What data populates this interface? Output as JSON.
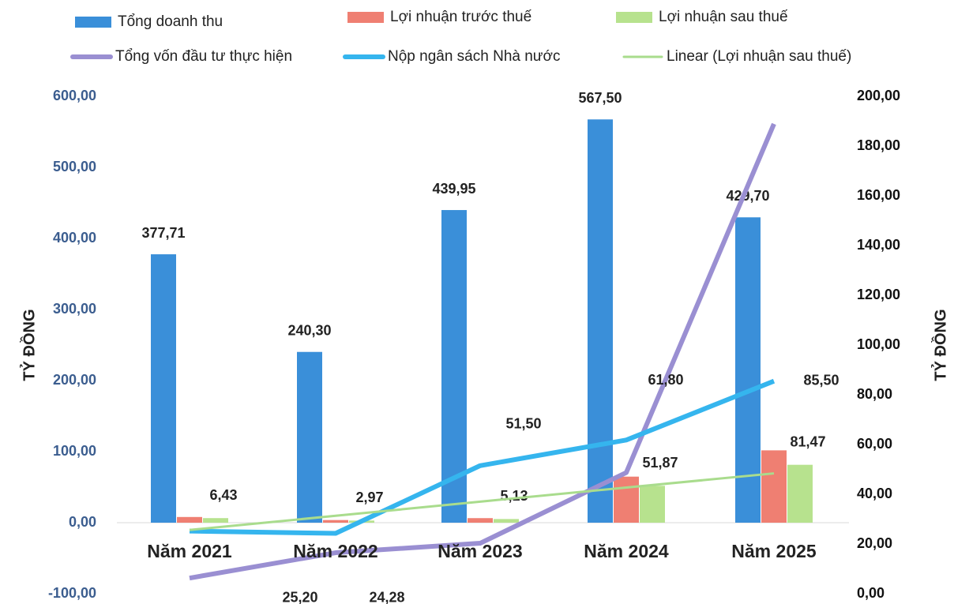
{
  "chart_data": {
    "type": "bar",
    "categories": [
      "Năm 2021",
      "Năm 2022",
      "Năm 2023",
      "Năm 2024",
      "Năm 2025"
    ],
    "ylabel": "TỶ ĐỒNG",
    "y2label": "TỶ ĐỒNG",
    "ylim": [
      -100,
      600
    ],
    "yticks": [
      {
        "value": -100,
        "label": "-100,00"
      },
      {
        "value": 0,
        "label": "0,00"
      },
      {
        "value": 100,
        "label": "100,00"
      },
      {
        "value": 200,
        "label": "200,00"
      },
      {
        "value": 300,
        "label": "300,00"
      },
      {
        "value": 400,
        "label": "400,00"
      },
      {
        "value": 500,
        "label": "500,00"
      },
      {
        "value": 600,
        "label": "600,00"
      }
    ],
    "y2lim": [
      0,
      200
    ],
    "y2ticks": [
      {
        "value": 0,
        "label": "0,00"
      },
      {
        "value": 20,
        "label": "20,00"
      },
      {
        "value": 40,
        "label": "40,00"
      },
      {
        "value": 60,
        "label": "60,00"
      },
      {
        "value": 80,
        "label": "80,00"
      },
      {
        "value": 100,
        "label": "100,00"
      },
      {
        "value": 120,
        "label": "120,00"
      },
      {
        "value": 140,
        "label": "140,00"
      },
      {
        "value": 160,
        "label": "160,00"
      },
      {
        "value": 180,
        "label": "180,00"
      },
      {
        "value": 200,
        "label": "200,00"
      }
    ],
    "series": [
      {
        "name": "Tổng doanh thu",
        "type": "bar",
        "color": "#3a8fd9",
        "values": [
          377.71,
          240.3,
          439.95,
          567.5,
          429.7
        ],
        "value_labels": [
          "377,71",
          "240,30",
          "439,95",
          "567,50",
          "429,70"
        ]
      },
      {
        "name": "Lợi nhuận trước thuế",
        "type": "bar",
        "color": "#ef7f72",
        "values": [
          8.0,
          3.7,
          6.4,
          64.8,
          101.8
        ]
      },
      {
        "name": "Lợi nhuận sau thuế",
        "type": "bar",
        "color": "#b7e28e",
        "values": [
          6.43,
          2.97,
          5.13,
          51.87,
          81.47
        ],
        "value_labels": [
          "6,43",
          "2,97",
          "5,13",
          "51,87",
          "81,47"
        ]
      },
      {
        "name": "Tổng vốn đầu tư thực hiện",
        "type": "line",
        "axis": "y2",
        "color": "#9a8fd2",
        "values": [
          6.3,
          16.5,
          20.3,
          48.7,
          188.9
        ]
      },
      {
        "name": "Nộp ngân sách Nhà nước",
        "type": "line",
        "axis": "y2",
        "color": "#35b5ee",
        "values": [
          25.2,
          24.28,
          51.5,
          61.8,
          85.5
        ],
        "value_labels": [
          "25,20",
          "24,28",
          "51,50",
          "61,80",
          "85,50"
        ]
      },
      {
        "name": "Linear (Lợi nhuận sau thuế)",
        "type": "trend",
        "color": "#a9dc8d",
        "values": [
          -10.23,
          9.67,
          29.57,
          49.47,
          69.37
        ]
      }
    ]
  }
}
